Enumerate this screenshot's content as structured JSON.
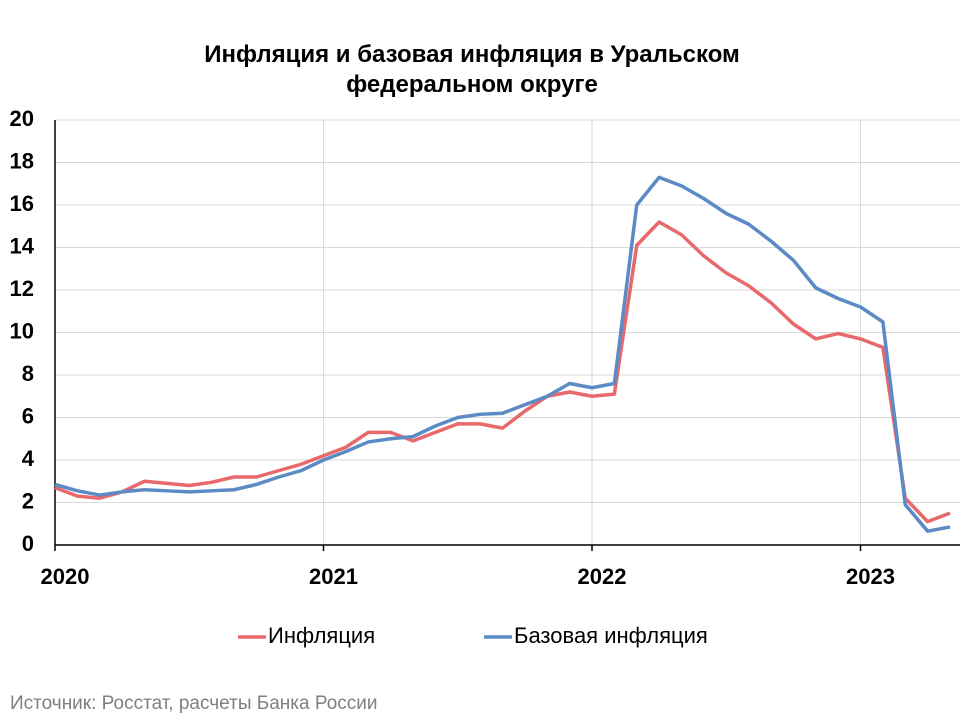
{
  "chart_data": {
    "type": "line",
    "title": "Инфляция и базовая инфляция в Уральском федеральном округе",
    "source": "Источник: Росстат, расчеты Банка России",
    "categories": [
      "2020",
      null,
      null,
      null,
      null,
      null,
      null,
      null,
      null,
      null,
      null,
      null,
      "2021",
      null,
      null,
      null,
      null,
      null,
      null,
      null,
      null,
      null,
      null,
      null,
      "2022",
      null,
      null,
      null,
      null,
      null,
      null,
      null,
      null,
      null,
      null,
      null,
      "2023",
      null,
      null,
      null,
      null
    ],
    "series": [
      {
        "name": "Инфляция",
        "color": "#e8696c",
        "values": [
          2.7,
          2.3,
          2.2,
          2.5,
          3.0,
          2.9,
          2.8,
          2.95,
          3.2,
          3.2,
          3.5,
          3.8,
          4.2,
          4.6,
          5.3,
          5.3,
          4.9,
          5.3,
          5.7,
          5.7,
          5.5,
          6.3,
          7.0,
          7.2,
          7.0,
          7.1,
          14.1,
          15.2,
          14.6,
          13.6,
          12.8,
          12.2,
          11.4,
          10.4,
          9.7,
          9.95,
          9.7,
          9.3,
          2.2,
          1.1,
          1.5
        ]
      },
      {
        "name": "Базовая инфляция",
        "color": "#5b8ac4",
        "values": [
          2.85,
          2.55,
          2.35,
          2.5,
          2.6,
          2.55,
          2.5,
          2.55,
          2.6,
          2.85,
          3.2,
          3.5,
          4.0,
          4.4,
          4.85,
          5.0,
          5.1,
          5.6,
          6.0,
          6.15,
          6.2,
          6.6,
          7.0,
          7.6,
          7.4,
          7.6,
          16.0,
          17.3,
          16.9,
          16.3,
          15.6,
          15.1,
          14.3,
          13.4,
          12.1,
          11.6,
          11.2,
          10.5,
          1.9,
          0.65,
          0.85
        ]
      }
    ],
    "ylim": [
      0,
      20
    ],
    "yticks": [
      0,
      2,
      4,
      6,
      8,
      10,
      12,
      14,
      16,
      18,
      20
    ],
    "grid": true,
    "legend": "bottom"
  }
}
